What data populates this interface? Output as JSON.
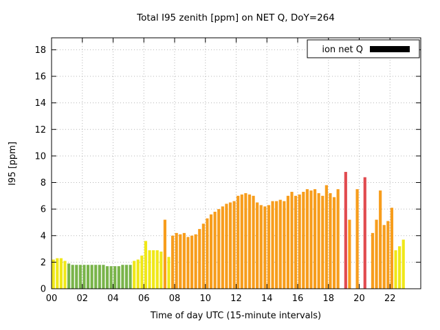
{
  "title": "Total I95 zenith [ppm] on NET Q, DoY=264",
  "legend": {
    "label": "ion net Q",
    "swatch_color": "#000000"
  },
  "chart_data": {
    "type": "bar",
    "title": "Total I95 zenith [ppm] on NET Q, DoY=264",
    "xlabel": "Time of day UTC (15-minute intervals)",
    "ylabel": "I95 [ppm]",
    "xlim": [
      0,
      24
    ],
    "ylim": [
      0,
      18.9
    ],
    "xticks": [
      "00",
      "02",
      "04",
      "06",
      "08",
      "10",
      "12",
      "14",
      "16",
      "18",
      "20",
      "22"
    ],
    "yticks": [
      0,
      2,
      4,
      6,
      8,
      10,
      12,
      14,
      16,
      18
    ],
    "grid": true,
    "legend_position": "top-right",
    "palette": {
      "y": "#f0e818",
      "g": "#79b44a",
      "o": "#f79d1c",
      "r": "#e14b50"
    },
    "bars_columns": [
      "hour_utc",
      "i95_ppm",
      "color_class"
    ],
    "bars": [
      [
        0.0,
        2.2,
        "y"
      ],
      [
        0.25,
        2.3,
        "y"
      ],
      [
        0.5,
        2.3,
        "y"
      ],
      [
        0.75,
        2.1,
        "y"
      ],
      [
        1.0,
        1.9,
        "g"
      ],
      [
        1.25,
        1.8,
        "g"
      ],
      [
        1.5,
        1.8,
        "g"
      ],
      [
        1.75,
        1.8,
        "g"
      ],
      [
        2.0,
        1.8,
        "g"
      ],
      [
        2.25,
        1.8,
        "g"
      ],
      [
        2.5,
        1.8,
        "g"
      ],
      [
        2.75,
        1.8,
        "g"
      ],
      [
        3.0,
        1.8,
        "g"
      ],
      [
        3.25,
        1.8,
        "g"
      ],
      [
        3.5,
        1.7,
        "g"
      ],
      [
        3.75,
        1.7,
        "g"
      ],
      [
        4.0,
        1.7,
        "g"
      ],
      [
        4.25,
        1.7,
        "g"
      ],
      [
        4.5,
        1.8,
        "g"
      ],
      [
        4.75,
        1.8,
        "g"
      ],
      [
        5.0,
        1.8,
        "g"
      ],
      [
        5.25,
        2.1,
        "y"
      ],
      [
        5.5,
        2.2,
        "y"
      ],
      [
        5.75,
        2.5,
        "y"
      ],
      [
        6.0,
        3.6,
        "y"
      ],
      [
        6.25,
        2.9,
        "y"
      ],
      [
        6.5,
        2.9,
        "y"
      ],
      [
        6.75,
        2.9,
        "y"
      ],
      [
        7.0,
        2.8,
        "y"
      ],
      [
        7.25,
        5.2,
        "o"
      ],
      [
        7.5,
        2.4,
        "y"
      ],
      [
        7.75,
        4.0,
        "o"
      ],
      [
        8.0,
        4.2,
        "o"
      ],
      [
        8.25,
        4.1,
        "o"
      ],
      [
        8.5,
        4.2,
        "o"
      ],
      [
        8.75,
        3.9,
        "o"
      ],
      [
        9.0,
        4.0,
        "o"
      ],
      [
        9.25,
        4.1,
        "o"
      ],
      [
        9.5,
        4.5,
        "o"
      ],
      [
        9.75,
        4.9,
        "o"
      ],
      [
        10.0,
        5.3,
        "o"
      ],
      [
        10.25,
        5.6,
        "o"
      ],
      [
        10.5,
        5.8,
        "o"
      ],
      [
        10.75,
        6.0,
        "o"
      ],
      [
        11.0,
        6.2,
        "o"
      ],
      [
        11.25,
        6.4,
        "o"
      ],
      [
        11.5,
        6.5,
        "o"
      ],
      [
        11.75,
        6.6,
        "o"
      ],
      [
        12.0,
        7.0,
        "o"
      ],
      [
        12.25,
        7.1,
        "o"
      ],
      [
        12.5,
        7.2,
        "o"
      ],
      [
        12.75,
        7.1,
        "o"
      ],
      [
        13.0,
        7.0,
        "o"
      ],
      [
        13.25,
        6.5,
        "o"
      ],
      [
        13.5,
        6.3,
        "o"
      ],
      [
        13.75,
        6.2,
        "o"
      ],
      [
        14.0,
        6.3,
        "o"
      ],
      [
        14.25,
        6.6,
        "o"
      ],
      [
        14.5,
        6.6,
        "o"
      ],
      [
        14.75,
        6.7,
        "o"
      ],
      [
        15.0,
        6.6,
        "o"
      ],
      [
        15.25,
        7.0,
        "o"
      ],
      [
        15.5,
        7.3,
        "o"
      ],
      [
        15.75,
        7.0,
        "o"
      ],
      [
        16.0,
        7.1,
        "o"
      ],
      [
        16.25,
        7.3,
        "o"
      ],
      [
        16.5,
        7.5,
        "o"
      ],
      [
        16.75,
        7.4,
        "o"
      ],
      [
        17.0,
        7.5,
        "o"
      ],
      [
        17.25,
        7.2,
        "o"
      ],
      [
        17.5,
        7.0,
        "o"
      ],
      [
        17.75,
        7.8,
        "o"
      ],
      [
        18.0,
        7.2,
        "o"
      ],
      [
        18.25,
        6.9,
        "o"
      ],
      [
        18.5,
        7.5,
        "o"
      ],
      [
        19.0,
        8.8,
        "r"
      ],
      [
        19.25,
        5.2,
        "o"
      ],
      [
        19.75,
        7.5,
        "o"
      ],
      [
        20.25,
        8.4,
        "r"
      ],
      [
        20.75,
        4.2,
        "o"
      ],
      [
        21.0,
        5.2,
        "o"
      ],
      [
        21.25,
        7.4,
        "o"
      ],
      [
        21.5,
        4.8,
        "o"
      ],
      [
        21.75,
        5.1,
        "o"
      ],
      [
        22.0,
        6.1,
        "o"
      ],
      [
        22.25,
        2.9,
        "y"
      ],
      [
        22.5,
        3.2,
        "y"
      ],
      [
        22.75,
        3.7,
        "y"
      ]
    ]
  }
}
